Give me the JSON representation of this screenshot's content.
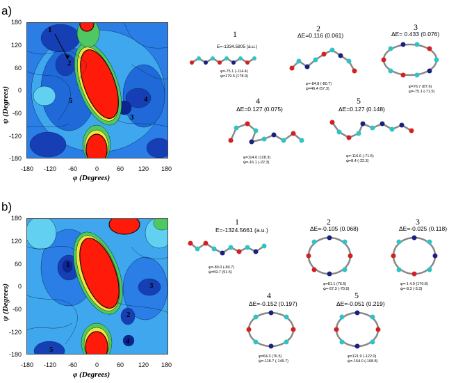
{
  "panels": [
    {
      "letter": "a)",
      "yticks": [
        "180",
        "120",
        "60",
        "0",
        "-60",
        "-120",
        "-180"
      ],
      "xticks": [
        "-180",
        "-120",
        "-60",
        "0",
        "60",
        "120",
        "180"
      ],
      "ylabel": "ψ (Degrees)",
      "xlabel": "φ (Degrees)",
      "map_labels": [
        "1",
        "2",
        "3",
        "4",
        "5"
      ],
      "conformers": [
        {
          "num": "1",
          "energy": "E=-1334.5805 (a.u.)",
          "angles": [
            "φ=-75.1 (-114.4)",
            "ψ=179.5 (178.9)"
          ]
        },
        {
          "num": "2",
          "energy": "ΔE=0.116 (0.061)",
          "angles": [
            "φ=-84.8 (-80.7)",
            "ψ=46.4 (57.3)"
          ]
        },
        {
          "num": "3",
          "energy": "ΔE= 0.433 (0.076)",
          "angles": [
            "φ=76.7 (87.6)",
            "ψ=-75.1 (-71.5)"
          ]
        },
        {
          "num": "4",
          "energy": "ΔE=0.127 (0.075)",
          "angles": [
            "φ=114.6 (128.3)",
            "ψ=-16.1 (-22.3)"
          ]
        },
        {
          "num": "5",
          "energy": "ΔE=0.127 (0.148)",
          "angles": [
            "φ=-116.6 (-71.5)",
            "ψ=8.4 (-22.3)"
          ]
        }
      ]
    },
    {
      "letter": "b)",
      "yticks": [
        "180",
        "120",
        "60",
        "0",
        "-60",
        "-120",
        "-180"
      ],
      "xticks": [
        "-180",
        "-120",
        "-60",
        "0",
        "60",
        "120",
        "180"
      ],
      "ylabel": "ψ (Degrees)",
      "xlabel": "φ (Degrees)",
      "map_labels": [
        "1",
        "2",
        "3",
        "4",
        "5"
      ],
      "conformers": [
        {
          "num": "1",
          "energy": "E=-1324.5661 (a.u.)",
          "angles": [
            "φ=-80.0 (-80.7)",
            "ψ=59.7 (51.5)"
          ]
        },
        {
          "num": "2",
          "energy": "ΔE=-0.105 (0.068)",
          "angles": [
            "φ=81.1 (76.5)",
            "ψ=-67.3 (-70.9)"
          ]
        },
        {
          "num": "3",
          "energy": "ΔE=-0.025 (0.118)",
          "angles": [
            "φ=-1 4.9 (170.8)",
            "ψ=-8.3 (-3.3)"
          ]
        },
        {
          "num": "4",
          "energy": "ΔE=-0.152 (0.197)",
          "angles": [
            "φ=64.3 (76.5)",
            "ψ=-118.7 (-149.7)"
          ]
        },
        {
          "num": "5",
          "energy": "ΔE=-0.051 (0.219)",
          "angles": [
            "φ=121.9 (-122.0)",
            "ψ=-154.0 (-168.8)"
          ]
        }
      ]
    }
  ]
}
